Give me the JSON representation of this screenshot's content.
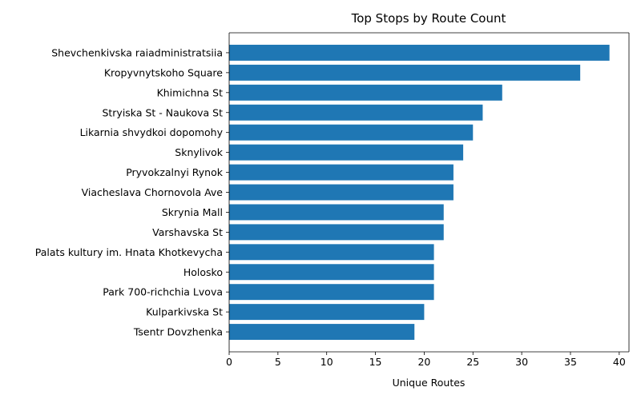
{
  "chart_data": {
    "type": "bar",
    "orientation": "horizontal",
    "title": "Top Stops by Route Count",
    "xlabel": "Unique Routes",
    "ylabel": "",
    "xlim": [
      0,
      41
    ],
    "x_ticks": [
      0,
      5,
      10,
      15,
      20,
      25,
      30,
      35,
      40
    ],
    "grid": false,
    "bar_color": "#1f77b4",
    "categories": [
      "Shevchenkivska raiadministratsiia",
      "Kropyvnytskoho Square",
      "Khimichna St",
      "Stryiska St - Naukova St",
      "Likarnia shvydkoi dopomohy",
      "Sknylivok",
      "Pryvokzalnyi Rynok",
      "Viacheslava Chornovola Ave",
      "Skrynia Mall",
      "Varshavska St",
      "Palats kultury im. Hnata Khotkevycha",
      "Holosko",
      "Park 700-richchia Lvova",
      "Kulparkivska St",
      "Tsentr Dovzhenka"
    ],
    "values": [
      39,
      36,
      28,
      26,
      25,
      24,
      23,
      23,
      22,
      22,
      21,
      21,
      21,
      20,
      19
    ]
  }
}
